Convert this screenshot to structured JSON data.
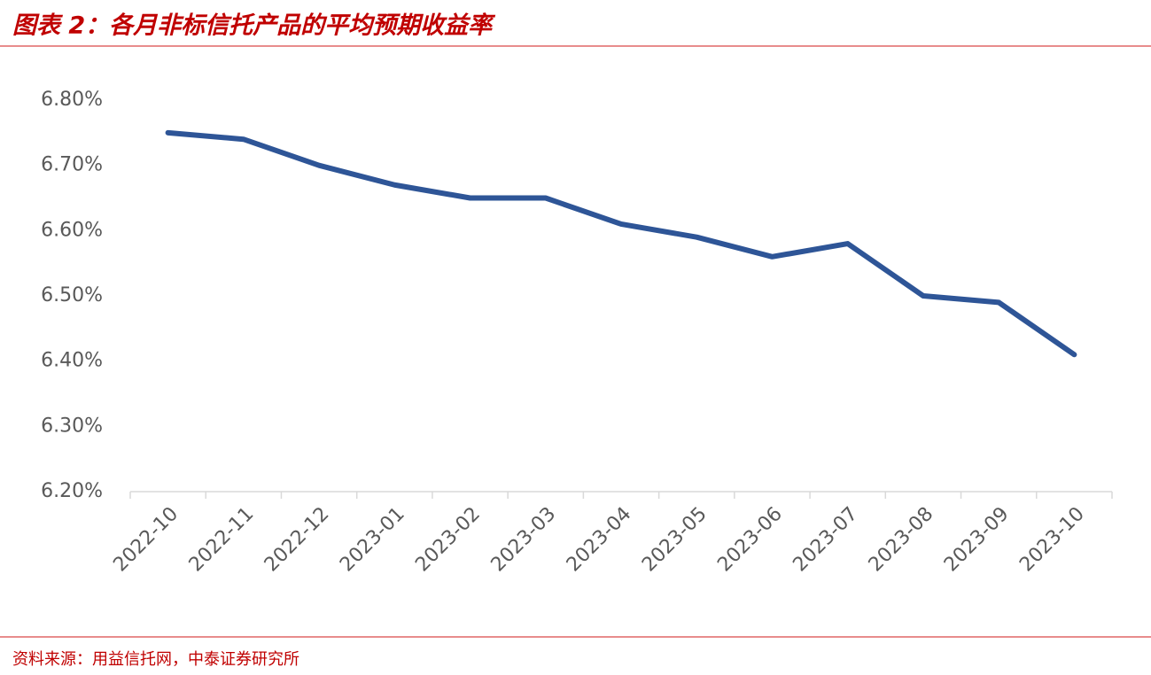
{
  "chart_data": {
    "type": "line",
    "title": "图表 2：各月非标信托产品的平均预期收益率",
    "source": "资料来源：用益信托网，中泰证券研究所",
    "categories": [
      "2022-10",
      "2022-11",
      "2022-12",
      "2023-01",
      "2023-02",
      "2023-03",
      "2023-04",
      "2023-05",
      "2023-06",
      "2023-07",
      "2023-08",
      "2023-09",
      "2023-10"
    ],
    "values": [
      6.75,
      6.74,
      6.7,
      6.67,
      6.65,
      6.65,
      6.61,
      6.59,
      6.56,
      6.58,
      6.5,
      6.49,
      6.41
    ],
    "color": "#2e5597",
    "ylim": [
      6.2,
      6.8
    ],
    "yticks": [
      {
        "value": 6.2,
        "label": "6.20%"
      },
      {
        "value": 6.3,
        "label": "6.30%"
      },
      {
        "value": 6.4,
        "label": "6.40%"
      },
      {
        "value": 6.5,
        "label": "6.50%"
      },
      {
        "value": 6.6,
        "label": "6.60%"
      },
      {
        "value": 6.7,
        "label": "6.70%"
      },
      {
        "value": 6.8,
        "label": "6.80%"
      }
    ],
    "grid": false
  }
}
